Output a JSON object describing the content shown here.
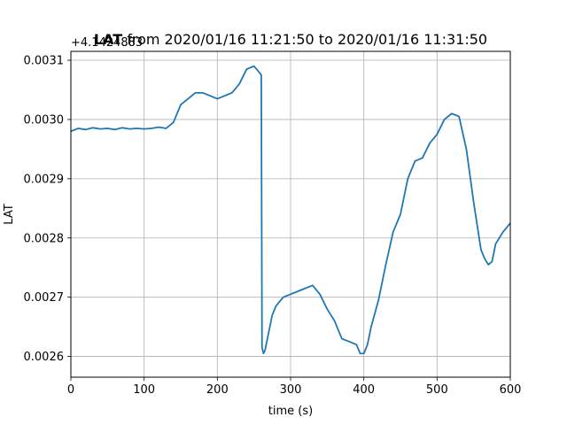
{
  "chart_data": {
    "type": "line",
    "title_bold": "LAT",
    "title_rest": " from 2020/01/16 11:21:50 to 2020/01/16 11:31:50",
    "offset_label": "+4.1424883",
    "xlabel": "time (s)",
    "ylabel": "LAT",
    "xlim": [
      0,
      600
    ],
    "ylim": [
      0.002565,
      0.003115
    ],
    "x_ticks": [
      0,
      100,
      200,
      300,
      400,
      500,
      600
    ],
    "x_tick_labels": [
      "0",
      "100",
      "200",
      "300",
      "400",
      "500",
      "600"
    ],
    "y_ticks": [
      0.0026,
      0.0027,
      0.0028,
      0.0029,
      0.003,
      0.0031
    ],
    "y_tick_labels": [
      "0.0026",
      "0.0027",
      "0.0028",
      "0.0029",
      "0.0030",
      "0.0031"
    ],
    "grid": true,
    "line_color": "#1f77b4",
    "series": [
      {
        "x": [
          0,
          10,
          20,
          30,
          40,
          50,
          60,
          70,
          80,
          90,
          100,
          110,
          120,
          130,
          140,
          150,
          160,
          170,
          180,
          190,
          200,
          210,
          220,
          230,
          240,
          250,
          255,
          260,
          261,
          263,
          265,
          270,
          275,
          280,
          290,
          300,
          310,
          320,
          330,
          340,
          350,
          360,
          370,
          380,
          390,
          395,
          400,
          405,
          410,
          420,
          430,
          440,
          450,
          460,
          470,
          480,
          490,
          500,
          510,
          520,
          530,
          540,
          550,
          560,
          565,
          570,
          575,
          580,
          590,
          600
        ],
        "y": [
          0.00298,
          0.002985,
          0.002983,
          0.002986,
          0.002984,
          0.002985,
          0.002983,
          0.002986,
          0.002984,
          0.002985,
          0.002984,
          0.002985,
          0.002987,
          0.002985,
          0.002995,
          0.003025,
          0.003035,
          0.003045,
          0.003045,
          0.00304,
          0.003035,
          0.00304,
          0.003045,
          0.00306,
          0.003085,
          0.00309,
          0.003083,
          0.003075,
          0.002615,
          0.002605,
          0.00261,
          0.00264,
          0.00267,
          0.002685,
          0.0027,
          0.002705,
          0.00271,
          0.002715,
          0.00272,
          0.002705,
          0.00268,
          0.00266,
          0.00263,
          0.002625,
          0.00262,
          0.002605,
          0.002605,
          0.00262,
          0.00265,
          0.002695,
          0.002755,
          0.00281,
          0.00284,
          0.0029,
          0.00293,
          0.002935,
          0.00296,
          0.002975,
          0.003,
          0.00301,
          0.003005,
          0.00295,
          0.00286,
          0.00278,
          0.002765,
          0.002755,
          0.00276,
          0.00279,
          0.00281,
          0.002825
        ]
      }
    ]
  }
}
